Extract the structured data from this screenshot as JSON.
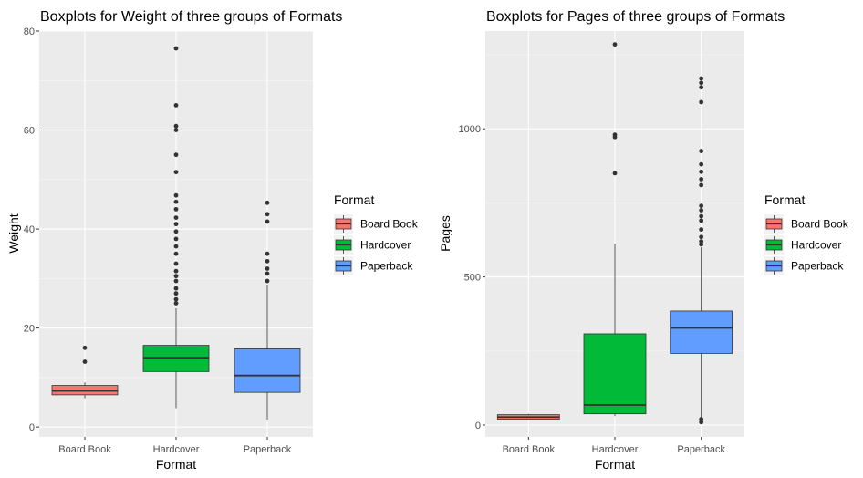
{
  "chart_data": [
    {
      "type": "boxplot",
      "title": "Boxplots for Weight of three groups of Formats",
      "xlabel": "Format",
      "ylabel": "Weight",
      "ylim": [
        -2,
        80
      ],
      "yticks": [
        "0",
        "20",
        "40",
        "60",
        "80"
      ],
      "ytick_values": [
        0,
        20,
        40,
        60,
        80
      ],
      "grid": true,
      "categories": [
        "Board Book",
        "Hardcover",
        "Paperback"
      ],
      "colors": [
        "#F8766D",
        "#00BA38",
        "#619CFF"
      ],
      "boxes": [
        {
          "name": "Board Book",
          "lower_whisker": 5.8,
          "q1": 6.5,
          "median": 7.3,
          "q3": 8.4,
          "upper_whisker": 9.0,
          "outliers": [
            13.2,
            16.0
          ]
        },
        {
          "name": "Hardcover",
          "lower_whisker": 3.8,
          "q1": 11.2,
          "median": 14.0,
          "q3": 16.5,
          "upper_whisker": 24.0,
          "outliers": [
            25.0,
            25.8,
            27.0,
            28.0,
            29.5,
            30.5,
            31.5,
            33.0,
            35.0,
            36.5,
            38.0,
            39.5,
            41.0,
            42.3,
            44.0,
            45.5,
            46.8,
            51.5,
            55.0,
            60.0,
            60.8,
            65.0,
            76.5
          ]
        },
        {
          "name": "Paperback",
          "lower_whisker": 1.5,
          "q1": 7.0,
          "median": 10.4,
          "q3": 15.8,
          "upper_whisker": 28.8,
          "outliers": [
            29.5,
            31.0,
            32.0,
            33.5,
            35.0,
            41.5,
            43.0,
            45.3
          ]
        }
      ]
    },
    {
      "type": "boxplot",
      "title": "Boxplots for Pages of three groups of Formats",
      "xlabel": "Format",
      "ylabel": "Pages",
      "ylim": [
        -40,
        1330
      ],
      "yticks": [
        "0",
        "500",
        "1000"
      ],
      "ytick_values": [
        0,
        500,
        1000
      ],
      "grid": true,
      "categories": [
        "Board Book",
        "Hardcover",
        "Paperback"
      ],
      "colors": [
        "#F8766D",
        "#00BA38",
        "#619CFF"
      ],
      "boxes": [
        {
          "name": "Board Book",
          "lower_whisker": 20,
          "q1": 20,
          "median": 27,
          "q3": 35,
          "upper_whisker": 38,
          "outliers": []
        },
        {
          "name": "Hardcover",
          "lower_whisker": 30,
          "q1": 38,
          "median": 68,
          "q3": 308,
          "upper_whisker": 612,
          "outliers": [
            850,
            972,
            980,
            1285
          ]
        },
        {
          "name": "Paperback",
          "lower_whisker": 20,
          "q1": 242,
          "median": 328,
          "q3": 385,
          "upper_whisker": 600,
          "outliers": [
            10,
            20,
            610,
            620,
            635,
            660,
            690,
            705,
            725,
            740,
            810,
            830,
            855,
            880,
            925,
            1090,
            1140,
            1155,
            1170
          ]
        }
      ]
    }
  ],
  "legend": {
    "title": "Format",
    "items": [
      "Board Book",
      "Hardcover",
      "Paperback"
    ],
    "colors": [
      "#F8766D",
      "#00BA38",
      "#619CFF"
    ],
    "position": "right"
  }
}
